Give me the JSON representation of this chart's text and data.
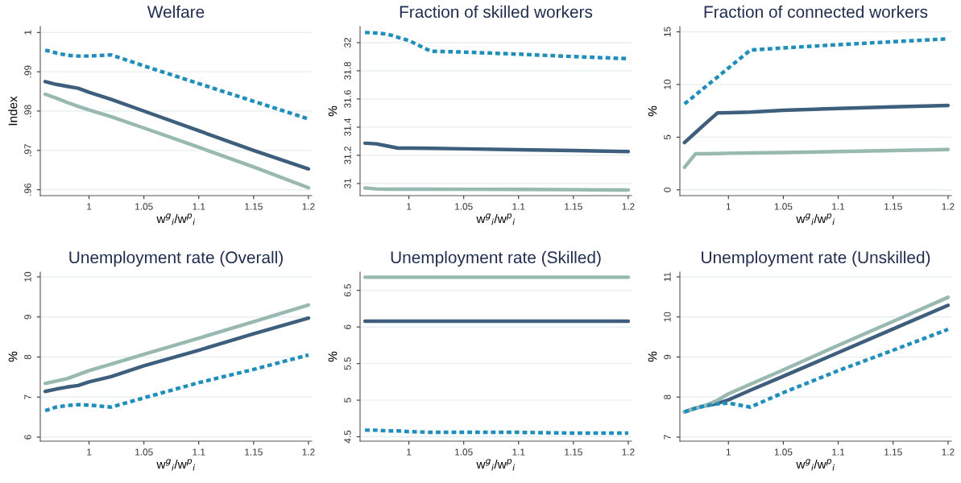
{
  "chart_data": [
    {
      "type": "line",
      "title": "Welfare",
      "xlabel": "w$^{g}$$_{i}$/w$^{p}$$_{i}$",
      "ylabel": "Index",
      "grid": "y",
      "xlim": [
        0.9555,
        1.203
      ],
      "xticks": [
        1,
        1.05,
        1.1,
        1.15,
        1.2
      ],
      "ylim": [
        0.9585,
        1.0015
      ],
      "yticks": [
        {
          "value": 0.96,
          "label": ".96"
        },
        {
          "value": 0.97,
          "label": ".97"
        },
        {
          "value": 0.98,
          "label": ".98"
        },
        {
          "value": 0.99,
          "label": ".99"
        },
        {
          "value": 1,
          "label": "1"
        }
      ],
      "x": [
        0.96,
        0.97,
        0.98,
        0.99,
        1.0,
        1.02,
        1.05,
        1.1,
        1.15,
        1.2
      ],
      "series": [
        {
          "color": "#1a8fc0",
          "line_style": "dashed",
          "values": [
            0.9955,
            0.9948,
            0.9942,
            0.994,
            0.994,
            0.9943,
            0.9915,
            0.987,
            0.9825,
            0.978
          ]
        },
        {
          "color": "#3d5f7d",
          "line_style": "solid",
          "values": [
            0.9875,
            0.9868,
            0.9863,
            0.9858,
            0.9848,
            0.983,
            0.98,
            0.975,
            0.97,
            0.9653
          ]
        },
        {
          "color": "#98b9b0",
          "line_style": "solid",
          "values": [
            0.9843,
            0.9833,
            0.9822,
            0.9812,
            0.9803,
            0.9786,
            0.9757,
            0.9708,
            0.9658,
            0.9605
          ]
        }
      ]
    },
    {
      "type": "line",
      "title": "Fraction of skilled workers",
      "xlabel": "w$^{g}$$_{i}$/w$^{p}$$_{i}$",
      "ylabel": "%",
      "grid": "y",
      "xlim": [
        0.9555,
        1.203
      ],
      "xticks": [
        1,
        1.05,
        1.1,
        1.15,
        1.2
      ],
      "ylim": [
        30.914,
        32.114
      ],
      "yticks": [
        31,
        31.2,
        31.4,
        31.6,
        31.8,
        32
      ],
      "x": [
        0.96,
        0.97,
        0.98,
        0.99,
        1.0,
        1.02,
        1.05,
        1.1,
        1.15,
        1.2
      ],
      "series": [
        {
          "color": "#1a8fc0",
          "line_style": "dashed",
          "values": [
            32.072,
            32.068,
            32.061,
            32.038,
            32.015,
            31.939,
            31.933,
            31.918,
            31.901,
            31.886
          ]
        },
        {
          "color": "#3d5f7d",
          "line_style": "solid",
          "values": [
            31.286,
            31.282,
            31.267,
            31.251,
            31.251,
            31.25,
            31.246,
            31.24,
            31.234,
            31.227
          ]
        },
        {
          "color": "#98b9b0",
          "line_style": "solid",
          "values": [
            30.968,
            30.962,
            30.96,
            30.96,
            30.96,
            30.96,
            30.959,
            30.958,
            30.956,
            30.954
          ]
        }
      ]
    },
    {
      "type": "line",
      "title": "Fraction of connected workers",
      "xlabel": "w$^{g}$$_{i}$/w$^{p}$$_{i}$",
      "ylabel": "%",
      "grid": "y",
      "xlim": [
        0.9558,
        1.203
      ],
      "xticks": [
        1,
        1.05,
        1.1,
        1.15,
        1.2
      ],
      "ylim": [
        -0.55,
        15.5
      ],
      "yticks": [
        0,
        5,
        10,
        15
      ],
      "x": [
        0.96,
        0.97,
        0.98,
        0.99,
        1.0,
        1.02,
        1.05,
        1.1,
        1.15,
        1.2
      ],
      "series": [
        {
          "color": "#1a8fc0",
          "line_style": "dashed",
          "values": [
            8.16,
            9.0,
            9.86,
            10.7,
            11.56,
            13.27,
            13.47,
            13.78,
            14.06,
            14.34
          ]
        },
        {
          "color": "#3d5f7d",
          "line_style": "solid",
          "values": [
            4.49,
            5.43,
            6.37,
            7.3,
            7.32,
            7.38,
            7.55,
            7.73,
            7.88,
            8.01
          ]
        },
        {
          "color": "#98b9b0",
          "line_style": "solid",
          "values": [
            2.14,
            3.42,
            3.43,
            3.45,
            3.47,
            3.5,
            3.54,
            3.63,
            3.73,
            3.83
          ]
        }
      ]
    },
    {
      "type": "line",
      "title": "Unemployment rate (Overall)",
      "xlabel": "w$^{g}$$_{i}$/w$^{p}$$_{i}$",
      "ylabel": "%",
      "grid": "y",
      "xlim": [
        0.9555,
        1.203
      ],
      "xticks": [
        1,
        1.05,
        1.1,
        1.15,
        1.2
      ],
      "ylim": [
        5.9,
        10.12
      ],
      "yticks": [
        6,
        7,
        8,
        9,
        10
      ],
      "x": [
        0.96,
        0.97,
        0.98,
        0.99,
        1.0,
        1.02,
        1.05,
        1.1,
        1.15,
        1.2
      ],
      "series": [
        {
          "color": "#1a8fc0",
          "line_style": "dashed",
          "values": [
            6.66,
            6.75,
            6.79,
            6.81,
            6.8,
            6.75,
            6.98,
            7.36,
            7.69,
            8.05
          ]
        },
        {
          "color": "#3d5f7d",
          "line_style": "solid",
          "values": [
            7.14,
            7.2,
            7.25,
            7.29,
            7.38,
            7.51,
            7.78,
            8.17,
            8.58,
            8.97
          ]
        },
        {
          "color": "#98b9b0",
          "line_style": "solid",
          "values": [
            7.34,
            7.4,
            7.46,
            7.56,
            7.66,
            7.82,
            8.07,
            8.47,
            8.88,
            9.3
          ]
        }
      ]
    },
    {
      "type": "line",
      "title": "Unemployment rate (Skilled)",
      "xlabel": "w$^{g}$$_{i}$/w$^{p}$$_{i}$",
      "ylabel": "%",
      "grid": "y",
      "xlim": [
        0.9555,
        1.203
      ],
      "xticks": [
        1,
        1.05,
        1.1,
        1.15,
        1.2
      ],
      "ylim": [
        4.44,
        6.75
      ],
      "yticks": [
        4.5,
        5,
        5.5,
        6,
        6.5
      ],
      "x": [
        0.96,
        0.97,
        0.98,
        0.99,
        1.0,
        1.02,
        1.05,
        1.1,
        1.15,
        1.2
      ],
      "series": [
        {
          "color": "#1a8fc0",
          "line_style": "dashed",
          "values": [
            4.59,
            4.59,
            4.58,
            4.58,
            4.57,
            4.56,
            4.56,
            4.56,
            4.55,
            4.55
          ]
        },
        {
          "color": "#3d5f7d",
          "line_style": "solid",
          "values": [
            6.08,
            6.08,
            6.08,
            6.08,
            6.08,
            6.08,
            6.08,
            6.08,
            6.08,
            6.08
          ]
        },
        {
          "color": "#98b9b0",
          "line_style": "solid",
          "values": [
            6.68,
            6.68,
            6.68,
            6.68,
            6.68,
            6.68,
            6.68,
            6.68,
            6.68,
            6.68
          ]
        }
      ]
    },
    {
      "type": "line",
      "title": "Unemployment rate (Unskilled)",
      "xlabel": "w$^{g}$$_{i}$/w$^{p}$$_{i}$",
      "ylabel": "%",
      "grid": "y",
      "xlim": [
        0.9558,
        1.203
      ],
      "xticks": [
        1,
        1.05,
        1.1,
        1.15,
        1.2
      ],
      "ylim": [
        6.9,
        11.12
      ],
      "yticks": [
        7,
        8,
        9,
        10,
        11
      ],
      "x": [
        0.96,
        0.97,
        0.98,
        0.99,
        1.0,
        1.02,
        1.05,
        1.1,
        1.15,
        1.2
      ],
      "series": [
        {
          "color": "#1a8fc0",
          "line_style": "dashed",
          "values": [
            7.63,
            7.72,
            7.79,
            7.83,
            7.85,
            7.75,
            8.11,
            8.66,
            9.17,
            9.69
          ]
        },
        {
          "color": "#3d5f7d",
          "line_style": "solid",
          "values": [
            7.63,
            7.72,
            7.79,
            7.84,
            7.93,
            8.17,
            8.52,
            9.11,
            9.7,
            10.29
          ]
        },
        {
          "color": "#98b9b0",
          "line_style": "solid",
          "values": [
            7.63,
            7.72,
            7.8,
            7.92,
            8.08,
            8.32,
            8.68,
            9.29,
            9.89,
            10.49
          ]
        }
      ]
    }
  ]
}
